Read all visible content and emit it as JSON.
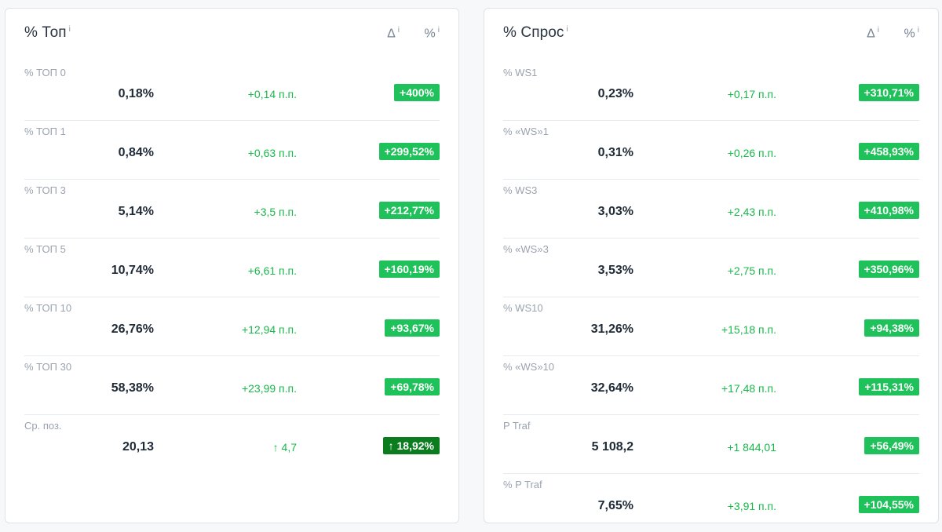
{
  "colors": {
    "positive_text": "#18b84a",
    "positive_badge": "#1fc25a",
    "positive_badge_dark": "#0b7d1f"
  },
  "left": {
    "title": "% Топ",
    "info": "i",
    "col_delta": "Δ",
    "col_pct": "%",
    "rows": [
      {
        "label": "% ТОП 0",
        "value": "0,18%",
        "delta": "+0,14 п.п.",
        "pct": "+400%"
      },
      {
        "label": "% ТОП 1",
        "value": "0,84%",
        "delta": "+0,63 п.п.",
        "pct": "+299,52%"
      },
      {
        "label": "% ТОП 3",
        "value": "5,14%",
        "delta": "+3,5 п.п.",
        "pct": "+212,77%"
      },
      {
        "label": "% ТОП 5",
        "value": "10,74%",
        "delta": "+6,61 п.п.",
        "pct": "+160,19%"
      },
      {
        "label": "% ТОП 10",
        "value": "26,76%",
        "delta": "+12,94 п.п.",
        "pct": "+93,67%"
      },
      {
        "label": "% ТОП 30",
        "value": "58,38%",
        "delta": "+23,99 п.п.",
        "pct": "+69,78%"
      },
      {
        "label": "Ср. поз.",
        "value": "20,13",
        "delta_arrow": "↑",
        "delta": "4,7",
        "pct_arrow": "↑",
        "pct": "18,92%"
      }
    ]
  },
  "right": {
    "title": "% Спрос",
    "info": "i",
    "col_delta": "Δ",
    "col_pct": "%",
    "rows": [
      {
        "label": "% WS1",
        "value": "0,23%",
        "delta": "+0,17 п.п.",
        "pct": "+310,71%"
      },
      {
        "label": "% «WS»1",
        "value": "0,31%",
        "delta": "+0,26 п.п.",
        "pct": "+458,93%"
      },
      {
        "label": "% WS3",
        "value": "3,03%",
        "delta": "+2,43 п.п.",
        "pct": "+410,98%"
      },
      {
        "label": "% «WS»3",
        "value": "3,53%",
        "delta": "+2,75 п.п.",
        "pct": "+350,96%"
      },
      {
        "label": "% WS10",
        "value": "31,26%",
        "delta": "+15,18 п.п.",
        "pct": "+94,38%"
      },
      {
        "label": "% «WS»10",
        "value": "32,64%",
        "delta": "+17,48 п.п.",
        "pct": "+115,31%"
      },
      {
        "label": "P Traf",
        "value": "5 108,2",
        "delta": "+1 844,01",
        "pct": "+56,49%"
      },
      {
        "label": "% P Traf",
        "value": "7,65%",
        "delta": "+3,91 п.п.",
        "pct": "+104,55%"
      }
    ]
  }
}
